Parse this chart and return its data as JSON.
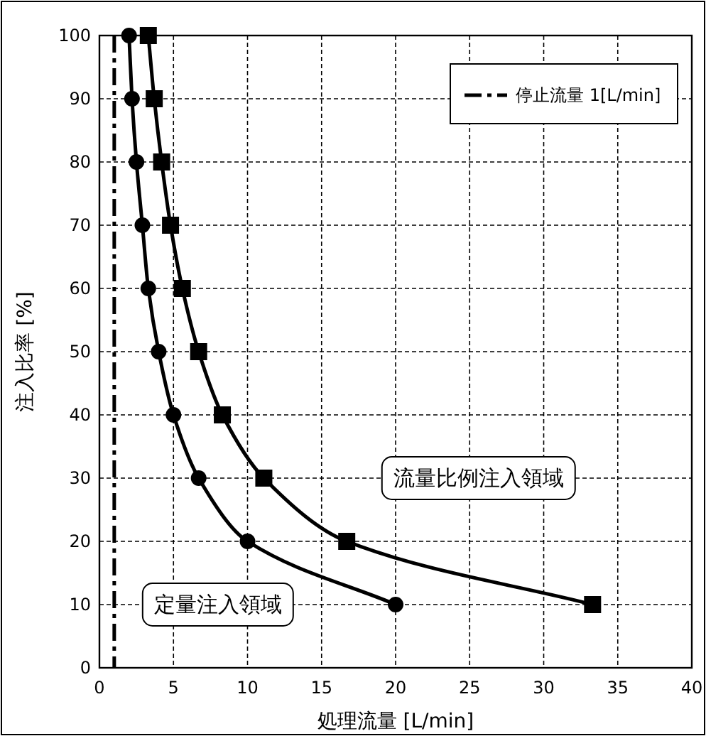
{
  "chart_data": {
    "type": "line",
    "xlabel": "処理流量 [L/min]",
    "ylabel": "注入比率 [%]",
    "xlim": [
      0,
      40
    ],
    "xticks": [
      0,
      5,
      10,
      15,
      20,
      25,
      30,
      35,
      40
    ],
    "ylim": [
      0,
      100
    ],
    "yticks": [
      0,
      10,
      20,
      30,
      40,
      50,
      60,
      70,
      80,
      90,
      100
    ],
    "grid": true,
    "legend": "top right",
    "line_style": "solid",
    "series": [
      {
        "color": "#000000",
        "marker": "circle",
        "x": [
          2.0,
          2.2,
          2.5,
          2.9,
          3.3,
          4.0,
          5.0,
          6.7,
          10.0,
          20.0
        ],
        "values": [
          100,
          90,
          80,
          70,
          60,
          50,
          40,
          30,
          20,
          10
        ]
      },
      {
        "color": "#000000",
        "marker": "square",
        "x": [
          3.3,
          3.7,
          4.2,
          4.8,
          5.6,
          6.7,
          8.3,
          11.1,
          16.7,
          33.3
        ],
        "values": [
          100,
          90,
          80,
          70,
          60,
          50,
          40,
          30,
          20,
          10
        ]
      }
    ],
    "ref_lines": [
      {
        "axis": "x",
        "value": 1,
        "label": "停止流量 1[L/min]",
        "color": "#000000",
        "line_style": "dashed"
      }
    ],
    "annotations": [
      "流量比例注入領域",
      "定量注入領域"
    ]
  }
}
